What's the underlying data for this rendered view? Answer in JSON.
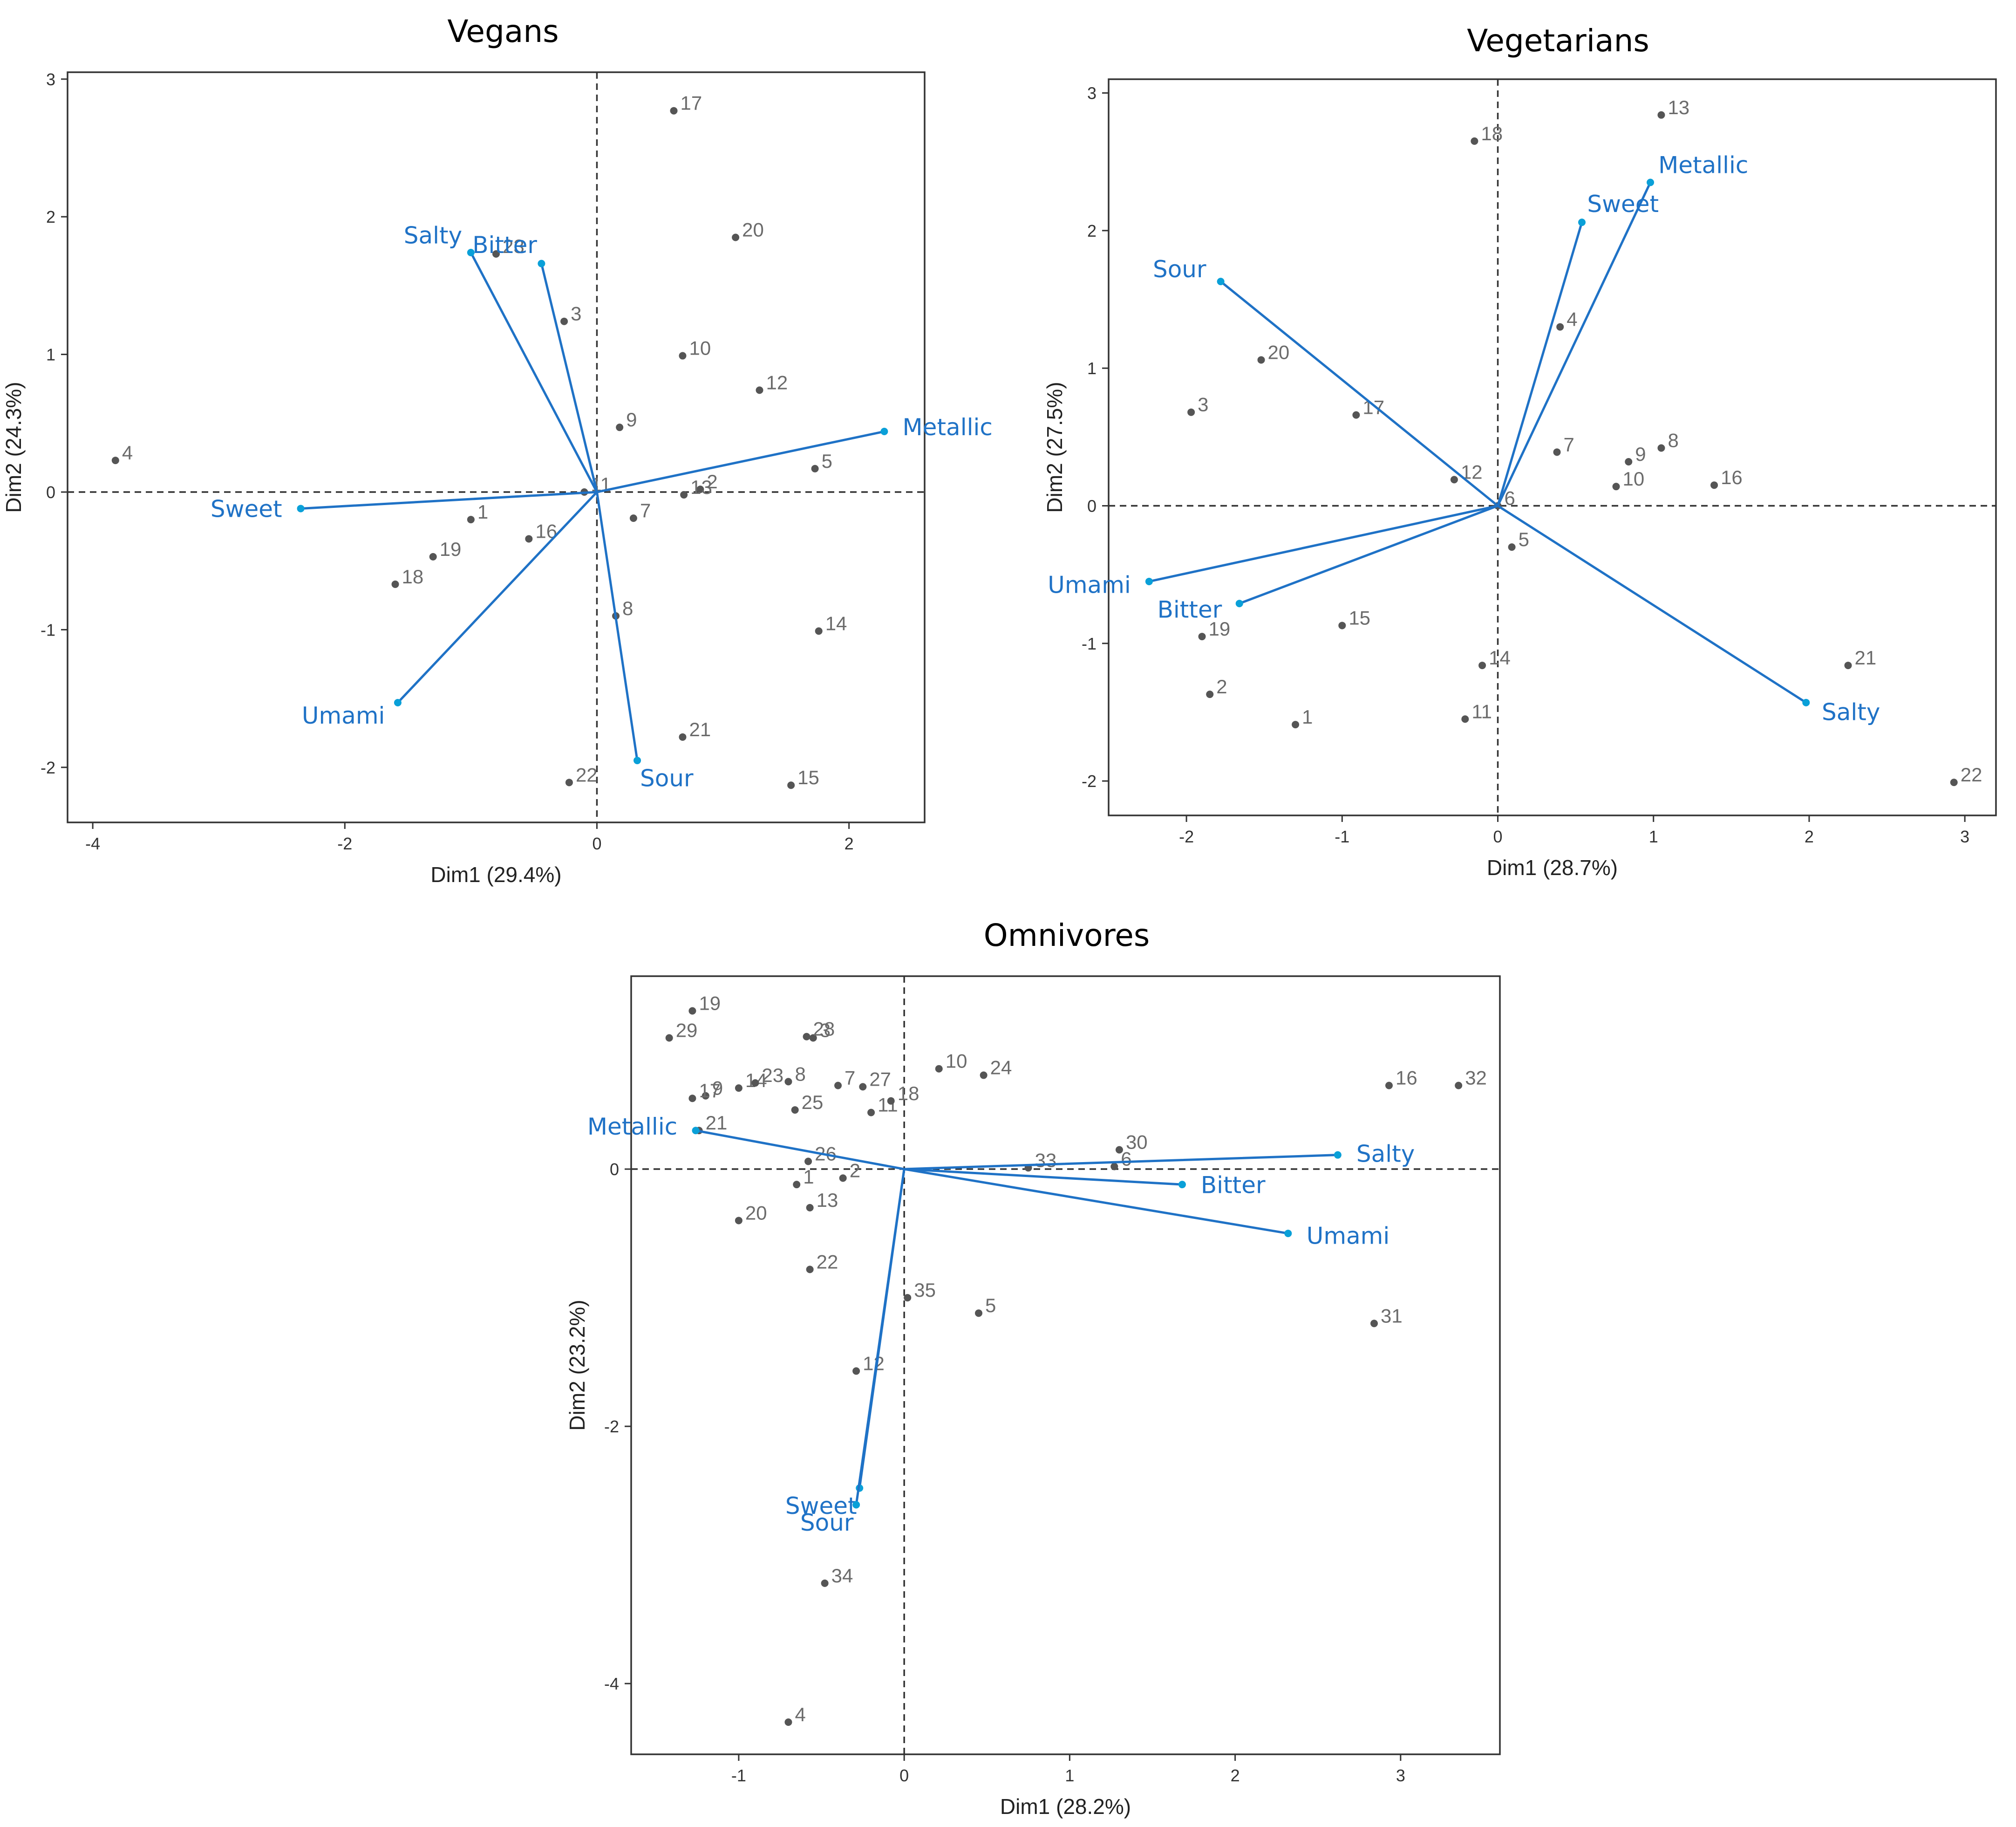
{
  "colors": {
    "accent": "#1f72c6",
    "point": "#555555",
    "point_label": "#6b6b6b",
    "arrow_tip": "#0aa0d8"
  },
  "chart_data": [
    {
      "type": "scatter",
      "title": "Vegans",
      "xlabel": "Dim1 (29.4%)",
      "ylabel": "Dim2 (24.3%)",
      "xlim": [
        -4.2,
        2.6
      ],
      "ylim": [
        -2.4,
        3.05
      ],
      "xticks": [
        -4,
        -2,
        0,
        2
      ],
      "yticks": [
        -2,
        -1,
        0,
        1,
        2,
        3
      ],
      "points": [
        {
          "label": "1",
          "x": -1.0,
          "y": -0.2
        },
        {
          "label": "2",
          "x": 0.82,
          "y": 0.02
        },
        {
          "label": "3",
          "x": -0.26,
          "y": 1.24
        },
        {
          "label": "4",
          "x": -3.82,
          "y": 0.23
        },
        {
          "label": "5",
          "x": 1.73,
          "y": 0.17
        },
        {
          "label": "7",
          "x": 0.29,
          "y": -0.19
        },
        {
          "label": "8",
          "x": 0.15,
          "y": -0.9
        },
        {
          "label": "9",
          "x": 0.18,
          "y": 0.47
        },
        {
          "label": "10",
          "x": 0.68,
          "y": 0.99
        },
        {
          "label": "11",
          "x": -0.1,
          "y": 0.0
        },
        {
          "label": "12",
          "x": 1.29,
          "y": 0.74
        },
        {
          "label": "13",
          "x": 0.69,
          "y": -0.02
        },
        {
          "label": "14",
          "x": 1.76,
          "y": -1.01
        },
        {
          "label": "15",
          "x": 1.54,
          "y": -2.13
        },
        {
          "label": "16",
          "x": -0.54,
          "y": -0.34
        },
        {
          "label": "17",
          "x": 0.61,
          "y": 2.77
        },
        {
          "label": "18",
          "x": -1.6,
          "y": -0.67
        },
        {
          "label": "19",
          "x": -1.3,
          "y": -0.47
        },
        {
          "label": "20",
          "x": 1.1,
          "y": 1.85
        },
        {
          "label": "21",
          "x": 0.68,
          "y": -1.78
        },
        {
          "label": "22",
          "x": -0.22,
          "y": -2.11
        },
        {
          "label": "23",
          "x": -0.8,
          "y": 1.73
        }
      ],
      "variables": [
        {
          "name": "Salty",
          "x": -1.0,
          "y": 1.74
        },
        {
          "name": "Bitter",
          "x": -0.44,
          "y": 1.66
        },
        {
          "name": "Metallic",
          "x": 2.28,
          "y": 0.44
        },
        {
          "name": "Sweet",
          "x": -2.35,
          "y": -0.12
        },
        {
          "name": "Umami",
          "x": -1.58,
          "y": -1.53
        },
        {
          "name": "Sour",
          "x": 0.32,
          "y": -1.95
        }
      ]
    },
    {
      "type": "scatter",
      "title": "Vegetarians",
      "xlabel": "Dim1 (28.7%)",
      "ylabel": "Dim2 (27.5%)",
      "xlim": [
        -2.5,
        3.2
      ],
      "ylim": [
        -2.25,
        3.1
      ],
      "xticks": [
        -2,
        -1,
        0,
        1,
        2,
        3
      ],
      "yticks": [
        -2,
        -1,
        0,
        1,
        2,
        3
      ],
      "points": [
        {
          "label": "1",
          "x": -1.3,
          "y": -1.59
        },
        {
          "label": "2",
          "x": -1.85,
          "y": -1.37
        },
        {
          "label": "3",
          "x": -1.97,
          "y": 0.68
        },
        {
          "label": "4",
          "x": 0.4,
          "y": 1.3
        },
        {
          "label": "5",
          "x": 0.09,
          "y": -0.3
        },
        {
          "label": "6",
          "x": 0.0,
          "y": 0.0
        },
        {
          "label": "7",
          "x": 0.38,
          "y": 0.39
        },
        {
          "label": "8",
          "x": 1.05,
          "y": 0.42
        },
        {
          "label": "9",
          "x": 0.84,
          "y": 0.32
        },
        {
          "label": "10",
          "x": 0.76,
          "y": 0.14
        },
        {
          "label": "11",
          "x": -0.21,
          "y": -1.55
        },
        {
          "label": "12",
          "x": -0.28,
          "y": 0.19
        },
        {
          "label": "13",
          "x": 1.05,
          "y": 2.84
        },
        {
          "label": "14",
          "x": -0.1,
          "y": -1.16
        },
        {
          "label": "15",
          "x": -1.0,
          "y": -0.87
        },
        {
          "label": "16",
          "x": 1.39,
          "y": 0.15
        },
        {
          "label": "17",
          "x": -0.91,
          "y": 0.66
        },
        {
          "label": "18",
          "x": -0.15,
          "y": 2.65
        },
        {
          "label": "19",
          "x": -1.9,
          "y": -0.95
        },
        {
          "label": "20",
          "x": -1.52,
          "y": 1.06
        },
        {
          "label": "21",
          "x": 2.25,
          "y": -1.16
        },
        {
          "label": "22",
          "x": 2.93,
          "y": -2.01
        }
      ],
      "variables": [
        {
          "name": "Metallic",
          "x": 0.98,
          "y": 2.35
        },
        {
          "name": "Sweet",
          "x": 0.54,
          "y": 2.06
        },
        {
          "name": "Sour",
          "x": -1.78,
          "y": 1.63
        },
        {
          "name": "Umami",
          "x": -2.24,
          "y": -0.55
        },
        {
          "name": "Bitter",
          "x": -1.66,
          "y": -0.71
        },
        {
          "name": "Salty",
          "x": 1.98,
          "y": -1.43
        }
      ]
    },
    {
      "type": "scatter",
      "title": "Omnivores",
      "xlabel": "Dim1 (28.2%)",
      "ylabel": "Dim2 (23.2%)",
      "xlim": [
        -1.65,
        3.6
      ],
      "ylim": [
        -4.55,
        1.5
      ],
      "xticks": [
        -1,
        0,
        1,
        2,
        3
      ],
      "yticks": [
        -4,
        -2,
        0
      ],
      "points": [
        {
          "label": "1",
          "x": -0.65,
          "y": -0.12
        },
        {
          "label": "2",
          "x": -0.37,
          "y": -0.07
        },
        {
          "label": "3",
          "x": -0.55,
          "y": 1.02
        },
        {
          "label": "4",
          "x": -0.7,
          "y": -4.3
        },
        {
          "label": "5",
          "x": 0.45,
          "y": -1.12
        },
        {
          "label": "6",
          "x": 1.27,
          "y": 0.02
        },
        {
          "label": "7",
          "x": -0.4,
          "y": 0.65
        },
        {
          "label": "8",
          "x": -0.7,
          "y": 0.68
        },
        {
          "label": "9",
          "x": -1.2,
          "y": 0.57
        },
        {
          "label": "10",
          "x": 0.21,
          "y": 0.78
        },
        {
          "label": "11",
          "x": -0.2,
          "y": 0.44
        },
        {
          "label": "12",
          "x": -0.29,
          "y": -1.57
        },
        {
          "label": "13",
          "x": -0.57,
          "y": -0.3
        },
        {
          "label": "14",
          "x": -1.0,
          "y": 0.63
        },
        {
          "label": "16",
          "x": 2.93,
          "y": 0.65
        },
        {
          "label": "17",
          "x": -1.28,
          "y": 0.55
        },
        {
          "label": "18",
          "x": -0.08,
          "y": 0.53
        },
        {
          "label": "19",
          "x": -1.28,
          "y": 1.23
        },
        {
          "label": "20",
          "x": -1.0,
          "y": -0.4
        },
        {
          "label": "21",
          "x": -1.24,
          "y": 0.3
        },
        {
          "label": "22",
          "x": -0.57,
          "y": -0.78
        },
        {
          "label": "23",
          "x": -0.9,
          "y": 0.67
        },
        {
          "label": "24",
          "x": 0.48,
          "y": 0.73
        },
        {
          "label": "25",
          "x": -0.66,
          "y": 0.46
        },
        {
          "label": "26",
          "x": -0.58,
          "y": 0.06
        },
        {
          "label": "27",
          "x": -0.25,
          "y": 0.64
        },
        {
          "label": "28",
          "x": -0.59,
          "y": 1.03
        },
        {
          "label": "29",
          "x": -1.42,
          "y": 1.02
        },
        {
          "label": "30",
          "x": 1.3,
          "y": 0.15
        },
        {
          "label": "31",
          "x": 2.84,
          "y": -1.2
        },
        {
          "label": "32",
          "x": 3.35,
          "y": 0.65
        },
        {
          "label": "33",
          "x": 0.75,
          "y": 0.01
        },
        {
          "label": "34",
          "x": -0.48,
          "y": -3.22
        },
        {
          "label": "35",
          "x": 0.02,
          "y": -1.0
        }
      ],
      "variables": [
        {
          "name": "Metallic",
          "x": -1.26,
          "y": 0.3
        },
        {
          "name": "Salty",
          "x": 2.62,
          "y": 0.11
        },
        {
          "name": "Bitter",
          "x": 1.68,
          "y": -0.12
        },
        {
          "name": "Umami",
          "x": 2.32,
          "y": -0.5
        },
        {
          "name": "Sweet",
          "x": -0.27,
          "y": -2.48
        },
        {
          "name": "Sour",
          "x": -0.29,
          "y": -2.61
        }
      ]
    }
  ]
}
